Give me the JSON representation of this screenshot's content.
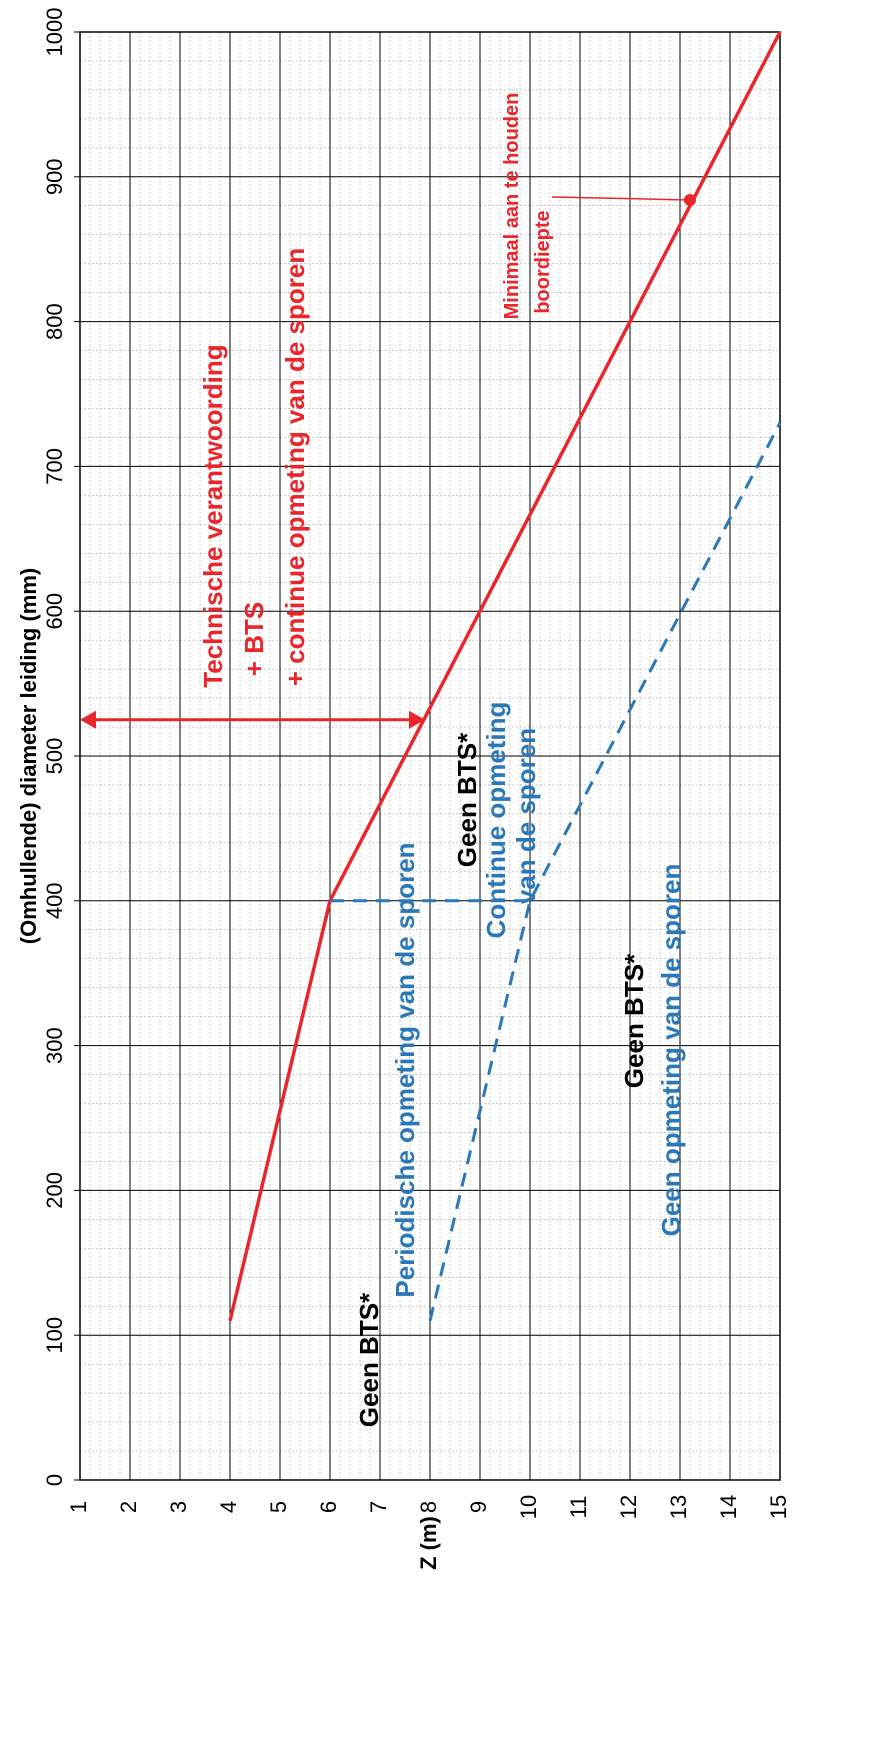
{
  "chart_data": {
    "type": "line",
    "xlabel": "(Omhullende) diameter leiding (mm)",
    "ylabel": "Z (m)",
    "xlim": [
      0,
      1000
    ],
    "ylim": [
      1,
      15
    ],
    "x_ticks": [
      "0",
      "100",
      "200",
      "300",
      "400",
      "500",
      "600",
      "700",
      "800",
      "900",
      "1000"
    ],
    "y_ticks": [
      "1",
      "2",
      "3",
      "4",
      "5",
      "6",
      "7",
      "8",
      "9",
      "10",
      "11",
      "12",
      "13",
      "14",
      "15"
    ],
    "grid": true,
    "series": [
      {
        "color": "#e8262b",
        "style": "solid",
        "points": [
          [
            110,
            4
          ],
          [
            400,
            6
          ],
          [
            1000,
            15
          ]
        ]
      },
      {
        "color": "#2a78b8",
        "style": "dashed",
        "points": [
          [
            110,
            8
          ],
          [
            400,
            10
          ],
          [
            730,
            15
          ]
        ]
      },
      {
        "color": "#2a78b8",
        "style": "dashed",
        "points": [
          [
            400,
            6
          ],
          [
            400,
            10
          ]
        ]
      }
    ],
    "markers": [
      {
        "x": 884,
        "y": 13.2,
        "color": "#e8262b"
      }
    ],
    "annotations": {
      "arrow": {
        "x": 525,
        "y_from": 1,
        "y_to": 7.9,
        "color": "#e8262b"
      },
      "red_label": {
        "line1": "Technische verantwoording",
        "line2": "+ BTS",
        "line3": "+ continue opmeting van de sporen"
      },
      "marker_label": {
        "line1": "Minimaal aan te houden",
        "line2": "boordiepte"
      },
      "zone_upper": {
        "black": "Geen BTS*",
        "blue_line1": "Continue opmeting",
        "blue_line2": "van de sporen"
      },
      "zone_left": {
        "black": "Geen BTS*",
        "blue": "Periodische opmeting van de sporen"
      },
      "zone_lower": {
        "black": "Geen BTS*",
        "blue": "Geen opmeting van de sporen"
      }
    },
    "colors": {
      "red": "#e8262b",
      "blue": "#2a78b8",
      "grid_major": "#000000",
      "grid_minor": "#9a9a9a"
    }
  }
}
